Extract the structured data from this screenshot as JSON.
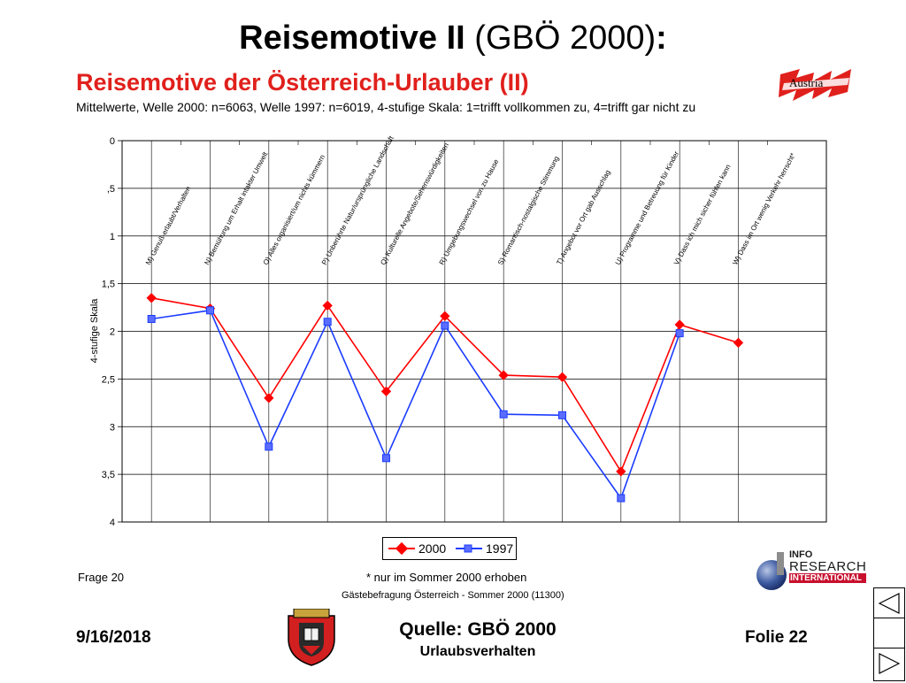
{
  "slide": {
    "title_bold": "Reisemotive II",
    "title_rest": " (GBÖ 2000)",
    "title_colon": ":"
  },
  "chart_data": {
    "type": "line",
    "title": "Reisemotive der Österreich-Urlauber (II)",
    "subtitle": "Mittelwerte, Welle 2000: n=6063, Welle 1997: n=6019, 4-stufige Skala: 1=trifft vollkommen zu, 4=trifft gar nicht zu",
    "ylabel": "4-stufige Skala",
    "ylim": [
      0,
      4
    ],
    "y_inverted": true,
    "y_tick_labels": [
      "0",
      ",5",
      "1",
      "1,5",
      "2",
      "2,5",
      "3",
      "3,5",
      "4"
    ],
    "categories": [
      "M) Genuß-erlaubt/Verhalten",
      "N) Bemühung um Erhalt intakter Umwelt",
      "O) Alles organisiert/um nichts kümmern",
      "P) Unberührte Natur/ursprüngliche Landschaft",
      "Q) Kulturelle Angebote/Sehenswürdigkeiten",
      "R) Umgebungswechsel von zu Hause",
      "S) Romantisch-nostalgische Stimmung",
      "T) Angebot vor Ort gab Ausschlag",
      "U) Programme und Betreuung für Kinder",
      "V) Dass ich mich sicher fühlen kann",
      "W) Dass im Ort wenig Verkehr herrscht*"
    ],
    "series": [
      {
        "name": "2000",
        "color": "#ff0000",
        "marker": "diamond",
        "values": [
          1.65,
          1.76,
          2.7,
          1.73,
          2.63,
          1.84,
          2.46,
          2.48,
          3.47,
          1.93,
          2.12
        ]
      },
      {
        "name": "1997",
        "color": "#1c3cff",
        "marker": "square",
        "values": [
          1.87,
          1.78,
          3.21,
          1.9,
          3.33,
          1.94,
          2.87,
          2.88,
          3.75,
          2.02,
          null
        ]
      }
    ],
    "grid": true,
    "legend_position": "bottom-center"
  },
  "footer": {
    "question": "Frage 20",
    "footnote": "*  nur im Sommer 2000 erhoben",
    "survey": "Gästebefragung Österreich - Sommer 2000 (11300)",
    "date": "9/16/2018",
    "source": "Quelle: GBÖ 2000",
    "topic": "Urlaubsverhalten",
    "page": "Folie 22"
  },
  "logos": {
    "austria": "Austria",
    "ir_line1": "INFO",
    "ir_line2": "RESEARCH",
    "ir_line3": "INTERNATIONAL"
  },
  "icons": {
    "nav_first": "triangle-left-icon",
    "nav_prev": "empty-box",
    "nav_next": "triangle-right-icon"
  }
}
